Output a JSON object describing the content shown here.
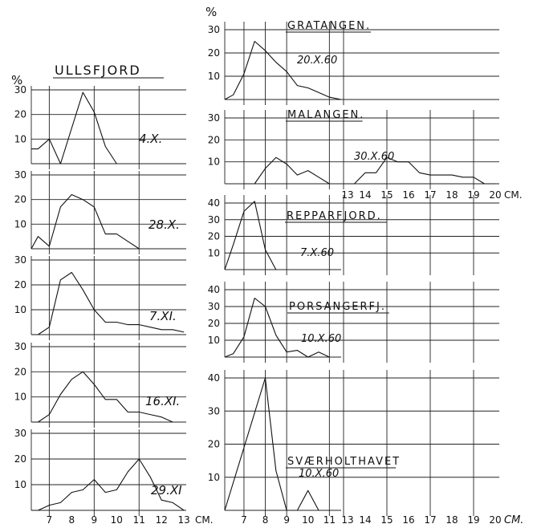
{
  "percent_label": "%",
  "left_title": "ULLSFJORD",
  "left_unit": "CM.",
  "right_unit": "CM.",
  "left_x_ticks": [
    "7",
    "8",
    "9",
    "10",
    "11",
    "12",
    "13"
  ],
  "right_x_ticks": [
    "7",
    "8",
    "9",
    "10",
    "11",
    "13",
    "14",
    "15",
    "16",
    "17",
    "18",
    "19",
    "20"
  ],
  "chart_data": [
    {
      "type": "line",
      "panel": "left-1",
      "date": "4.X.",
      "xlim": [
        6.2,
        13.1
      ],
      "ylim": [
        0,
        30
      ],
      "y_ticks": [
        10,
        20,
        30
      ],
      "x": [
        6.2,
        6.5,
        7,
        7.5,
        8.5,
        9,
        9.5,
        10
      ],
      "values": [
        6,
        6,
        10,
        0,
        29,
        21,
        7,
        0
      ]
    },
    {
      "type": "line",
      "panel": "left-2",
      "date": "28.X.",
      "xlim": [
        6.2,
        13.1
      ],
      "ylim": [
        0,
        30
      ],
      "y_ticks": [
        10,
        20,
        30
      ],
      "x": [
        6.2,
        6.5,
        7,
        7.5,
        8,
        8.5,
        9,
        9.5,
        10,
        10.5,
        11
      ],
      "values": [
        0,
        5,
        1,
        17,
        22,
        20,
        17,
        6,
        6,
        3,
        0
      ]
    },
    {
      "type": "line",
      "panel": "left-3",
      "date": "7.XI.",
      "xlim": [
        6.2,
        13.1
      ],
      "ylim": [
        0,
        30
      ],
      "y_ticks": [
        10,
        20,
        30
      ],
      "x": [
        6.2,
        6.5,
        7,
        7.5,
        8,
        8.5,
        9,
        9.5,
        10,
        10.5,
        11,
        11.5,
        12,
        12.5,
        13
      ],
      "values": [
        0,
        0,
        3,
        22,
        25,
        18,
        10,
        5,
        5,
        4,
        4,
        3,
        2,
        2,
        1
      ]
    },
    {
      "type": "line",
      "panel": "left-4",
      "date": "16.XI.",
      "xlim": [
        6.2,
        13.1
      ],
      "ylim": [
        0,
        30
      ],
      "y_ticks": [
        10,
        20,
        30
      ],
      "x": [
        6.2,
        6.5,
        7,
        7.5,
        8,
        8.5,
        9,
        9.5,
        10,
        10.5,
        11,
        11.5,
        12,
        12.5
      ],
      "values": [
        0,
        0,
        3,
        11,
        17,
        20,
        15,
        9,
        9,
        4,
        4,
        3,
        2,
        0
      ]
    },
    {
      "type": "line",
      "panel": "left-5",
      "date": "29.XI",
      "xlim": [
        6.2,
        13.1
      ],
      "ylim": [
        0,
        30
      ],
      "y_ticks": [
        10,
        20,
        30
      ],
      "x": [
        6.2,
        6.5,
        7,
        7.5,
        8,
        8.5,
        9,
        9.5,
        10,
        10.5,
        11,
        11.5,
        12,
        12.5,
        13
      ],
      "values": [
        0,
        0,
        2,
        3,
        7,
        8,
        12,
        7,
        8,
        15,
        20,
        13,
        4,
        3,
        0
      ]
    },
    {
      "type": "line",
      "panel": "right-1",
      "location": "GRATANGEN.",
      "date": "20.X.60",
      "xlim": [
        6.1,
        11.5
      ],
      "ylim": [
        0,
        30
      ],
      "y_ticks": [
        10,
        20,
        30
      ],
      "x": [
        6.1,
        6.5,
        7,
        7.5,
        8,
        8.5,
        9,
        9.5,
        10,
        10.5,
        11,
        11.5
      ],
      "values": [
        0,
        2,
        11,
        25,
        21,
        16,
        12,
        6,
        5,
        3,
        1,
        0
      ]
    },
    {
      "type": "line",
      "panel": "right-2",
      "location": "MALANGEN.",
      "date": "30.X.60",
      "xlim": [
        6.1,
        20.3
      ],
      "ylim": [
        0,
        30
      ],
      "y_ticks": [
        10,
        20,
        30
      ],
      "x": [
        7,
        7.5,
        8,
        8.5,
        9,
        9.5,
        10,
        10.5,
        11,
        13,
        13.5,
        14,
        14.5,
        15,
        15.5,
        16,
        16.5,
        17,
        17.5,
        18,
        18.5,
        19,
        19.5,
        20
      ],
      "values": [
        0,
        0,
        7,
        12,
        9,
        4,
        6,
        3,
        0,
        0,
        0,
        5,
        5,
        12,
        10,
        10,
        5,
        4,
        4,
        4,
        3,
        3,
        0,
        0
      ]
    },
    {
      "type": "line",
      "panel": "right-3",
      "location": "REPPARFJORD.",
      "date": "7.X.60",
      "xlim": [
        6.1,
        20.3
      ],
      "ylim": [
        0,
        40
      ],
      "y_ticks": [
        10,
        20,
        30,
        40
      ],
      "x": [
        6.1,
        6.5,
        7,
        7.5,
        8,
        8.5
      ],
      "values": [
        0,
        15,
        35,
        41,
        12,
        0
      ]
    },
    {
      "type": "line",
      "panel": "right-4",
      "location": "PORSANGERFJ.",
      "date": "10.X.60",
      "xlim": [
        6.1,
        20.3
      ],
      "ylim": [
        0,
        40
      ],
      "y_ticks": [
        10,
        20,
        30,
        40
      ],
      "x": [
        6.1,
        6.5,
        7,
        7.5,
        8,
        8.5,
        9,
        9.5,
        10,
        10.5,
        11
      ],
      "values": [
        0,
        2,
        12,
        35,
        30,
        13,
        3,
        4,
        0,
        3,
        0
      ]
    },
    {
      "type": "line",
      "panel": "right-5",
      "location": "SVÆRHOLTHAVET",
      "date": "10.X.60",
      "xlim": [
        6.1,
        20.3
      ],
      "ylim": [
        0,
        40
      ],
      "y_ticks": [
        10,
        20,
        30,
        40
      ],
      "x": [
        6.1,
        8,
        8.5,
        9,
        9.5,
        10,
        10.5
      ],
      "values": [
        0,
        40,
        12,
        0,
        0,
        6,
        0
      ]
    }
  ]
}
